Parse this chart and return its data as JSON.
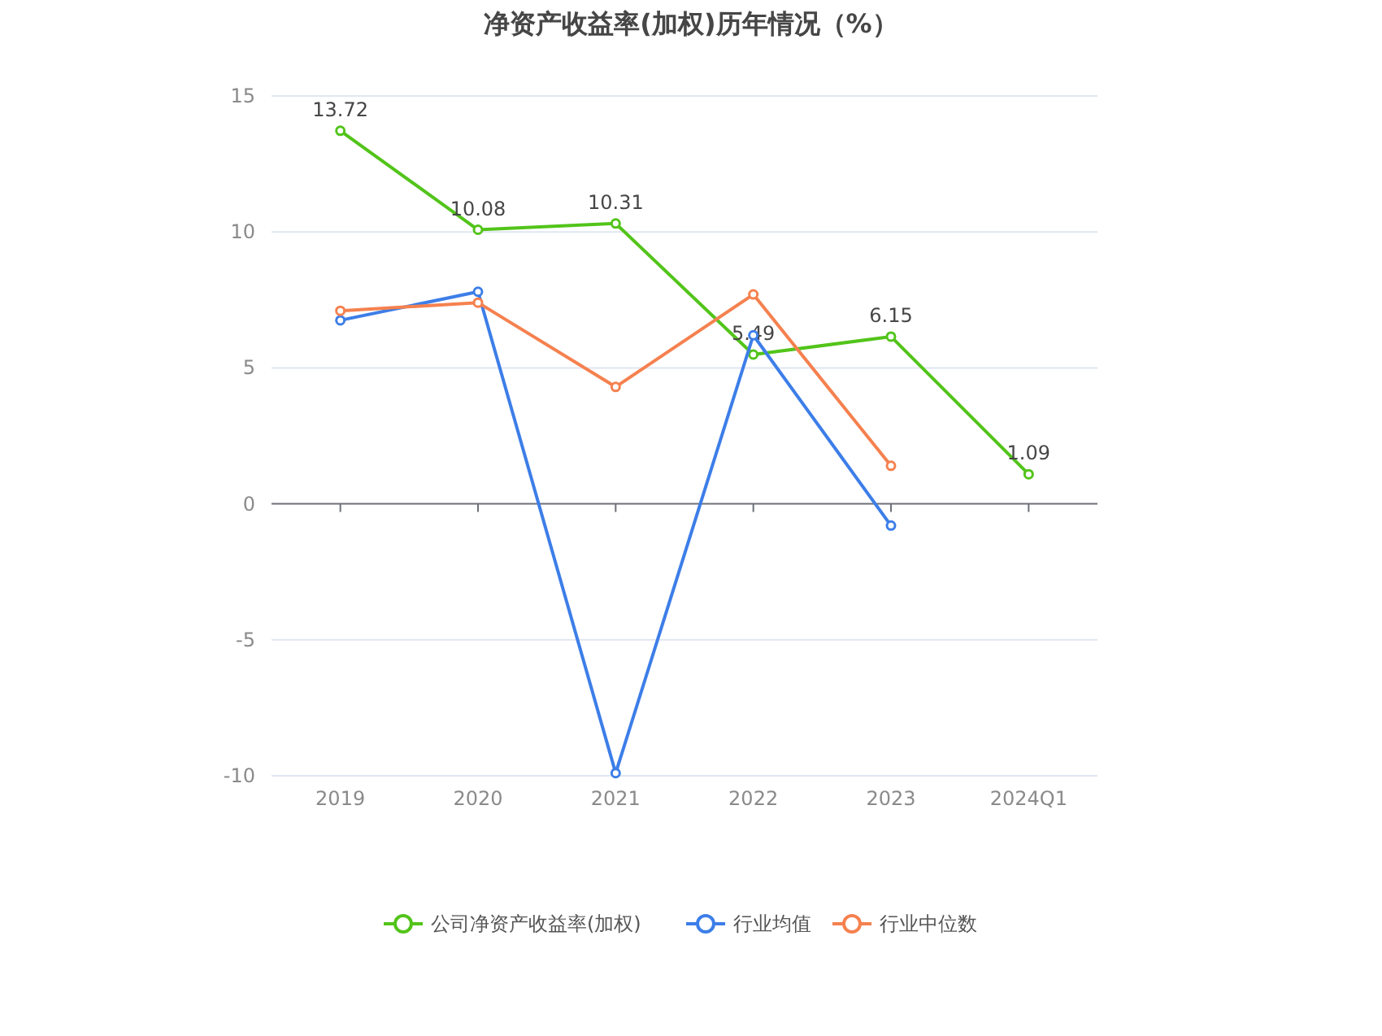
{
  "chart_data": {
    "type": "line",
    "title": "净资产收益率(加权)历年情况（%）",
    "categories": [
      "2019",
      "2020",
      "2021",
      "2022",
      "2023",
      "2024Q1"
    ],
    "series": [
      {
        "name": "公司净资产收益率(加权)",
        "color": "#52c41a",
        "values": [
          13.72,
          10.08,
          10.31,
          5.49,
          6.15,
          1.09
        ],
        "value_labels": [
          "13.72",
          "10.08",
          "10.31",
          "5.49",
          "6.15",
          "1.09"
        ]
      },
      {
        "name": "行业均值",
        "color": "#3d7ee8",
        "values": [
          6.75,
          7.8,
          -9.9,
          6.2,
          -0.8,
          null
        ]
      },
      {
        "name": "行业中位数",
        "color": "#f5814f",
        "values": [
          7.1,
          7.4,
          4.3,
          7.7,
          1.4,
          null
        ]
      }
    ],
    "ylim": [
      -10,
      15
    ],
    "yticks": [
      -10,
      -5,
      0,
      5,
      10,
      15
    ],
    "grid": "y",
    "legend": "bottom",
    "marker": "circle",
    "line_style": "solid"
  }
}
